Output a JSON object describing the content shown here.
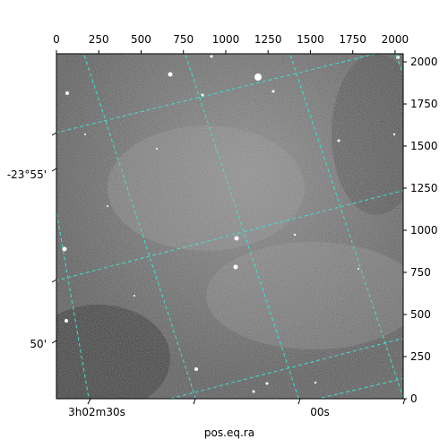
{
  "pixel_axis_top": {
    "ticks": [
      "0",
      "250",
      "500",
      "750",
      "1000",
      "1250",
      "1500",
      "1750",
      "2000"
    ],
    "range": [
      0,
      2048
    ]
  },
  "pixel_axis_right": {
    "ticks": [
      "0",
      "250",
      "500",
      "750",
      "1000",
      "1250",
      "1500",
      "1750",
      "2000"
    ],
    "range": [
      0,
      2048
    ]
  },
  "world_axis_bottom": {
    "title": "pos.eq.ra",
    "ticks": [
      "3h02m30s",
      "00s"
    ]
  },
  "world_axis_left": {
    "ticks": [
      "-23°55'",
      "50'"
    ]
  },
  "grid": {
    "shown": true,
    "color": "#40e0d0",
    "style": "dashed"
  },
  "image": {
    "colormap": "gray"
  }
}
